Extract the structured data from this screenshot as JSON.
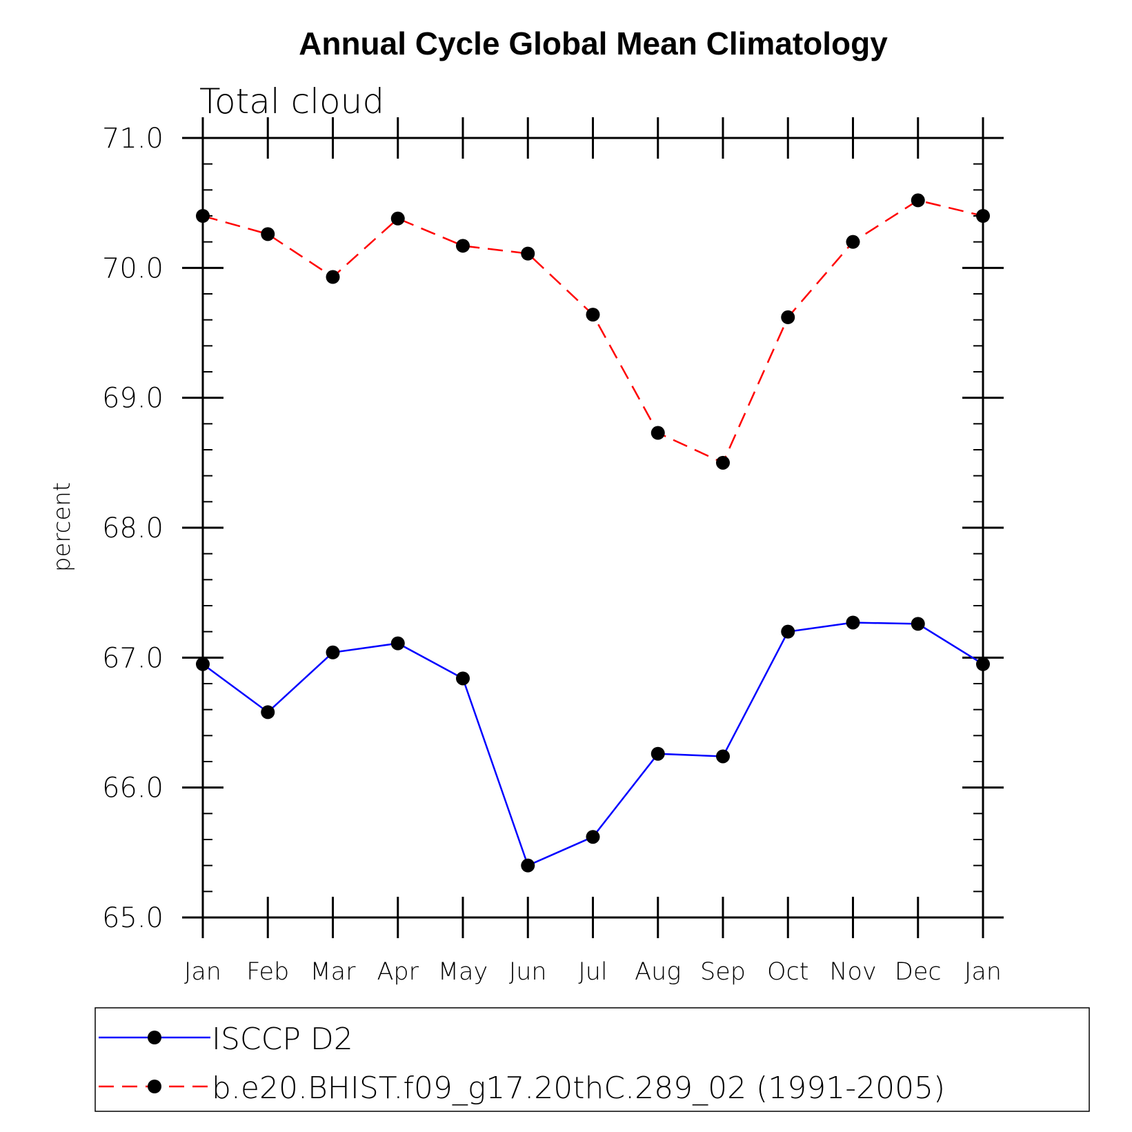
{
  "chart_data": {
    "type": "line",
    "title": "Annual Cycle Global Mean Climatology",
    "subtitle": "Total cloud",
    "ylabel": "percent",
    "xlabel": "",
    "categories": [
      "Jan",
      "Feb",
      "Mar",
      "Apr",
      "May",
      "Jun",
      "Jul",
      "Aug",
      "Sep",
      "Oct",
      "Nov",
      "Dec",
      "Jan"
    ],
    "ylim": [
      65.0,
      71.0
    ],
    "yticks": [
      "65.0",
      "66.0",
      "67.0",
      "68.0",
      "69.0",
      "70.0",
      "71.0"
    ],
    "series": [
      {
        "name": "ISCCP D2",
        "color": "#0000ff",
        "line_style": "solid",
        "marker": "filled-circle",
        "values": [
          66.95,
          66.58,
          67.04,
          67.11,
          66.84,
          65.4,
          65.62,
          66.26,
          66.24,
          67.2,
          67.27,
          67.26,
          66.95
        ]
      },
      {
        "name": "b.e20.BHIST.f09_g17.20thC.289_02 (1991-2005)",
        "color": "#ff0000",
        "line_style": "dashed",
        "marker": "filled-circle",
        "values": [
          70.4,
          70.26,
          69.93,
          70.38,
          70.17,
          70.11,
          69.64,
          68.73,
          68.5,
          69.62,
          70.2,
          70.52,
          70.4
        ]
      }
    ],
    "grid": false,
    "legend_position": "bottom"
  }
}
